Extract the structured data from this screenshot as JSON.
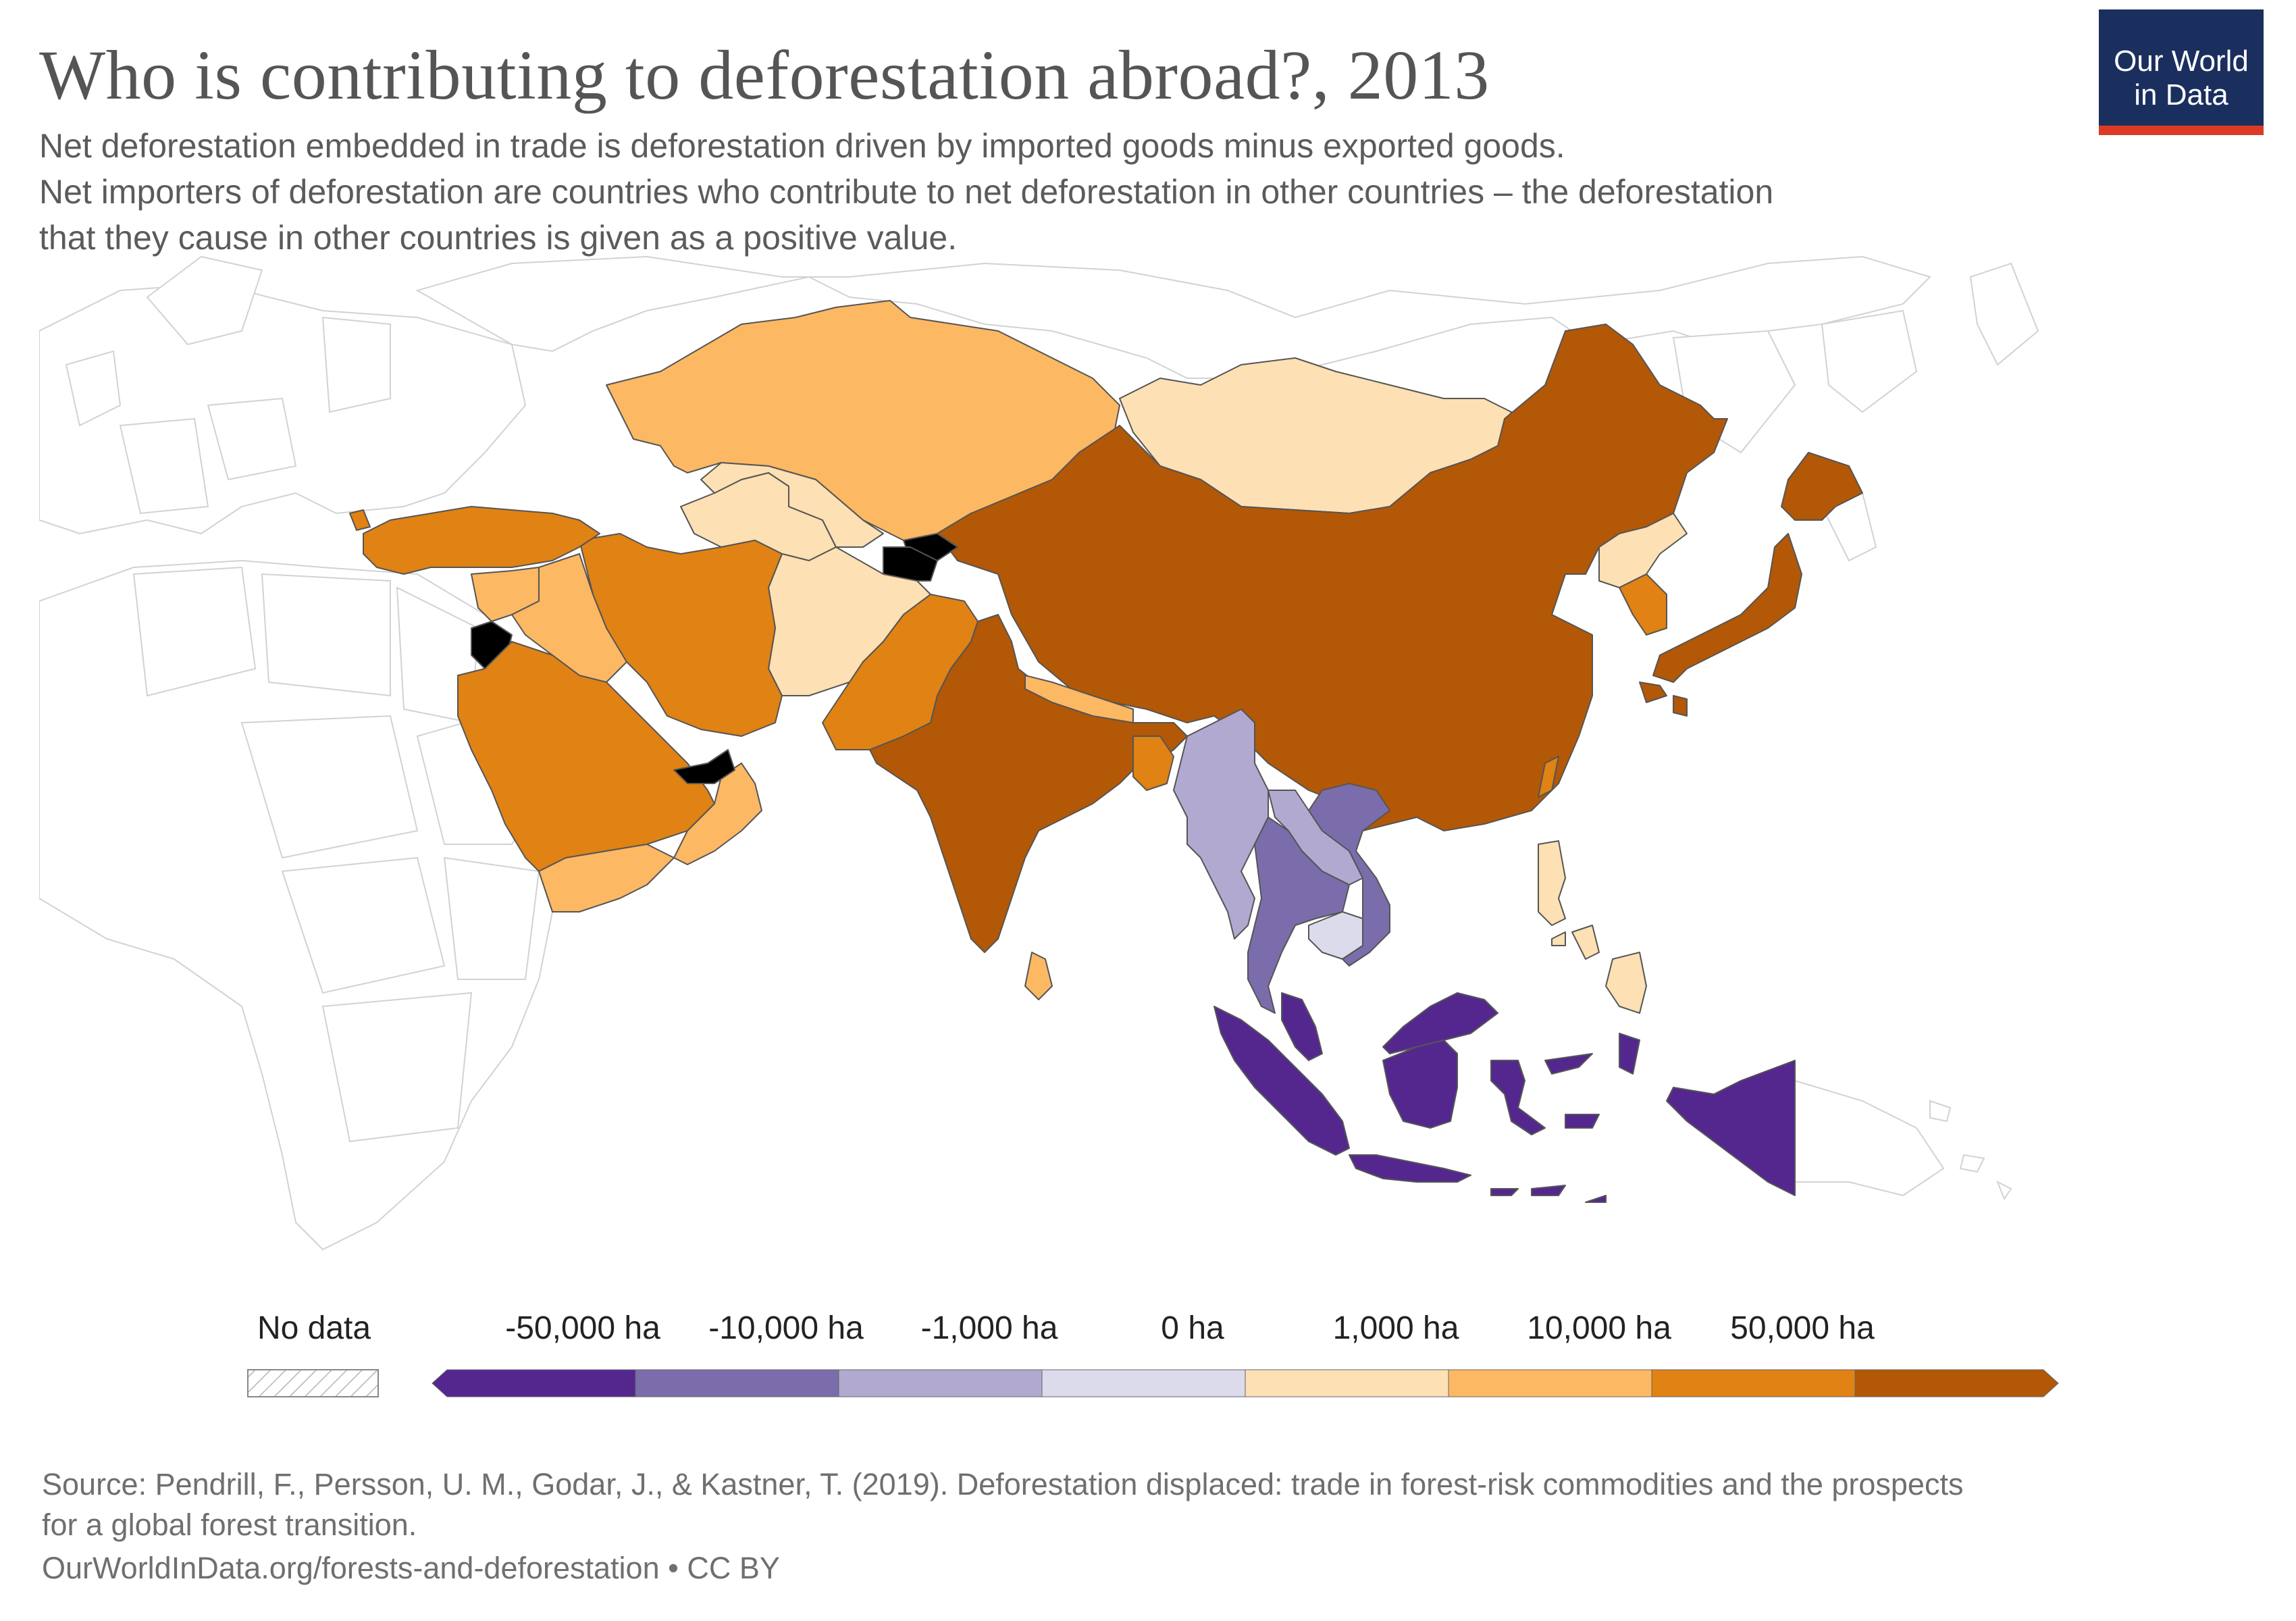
{
  "header": {
    "title": "Who is contributing to deforestation abroad?, 2013",
    "subtitle_lines": [
      "Net deforestation embedded in trade is deforestation driven by imported goods minus exported goods.",
      "Net importers of deforestation are countries who contribute to net deforestation in other countries – the deforestation",
      "that they cause in other countries is given as a positive value."
    ]
  },
  "logo": {
    "line1": "Our World",
    "line2": "in Data",
    "bg_color": "#1b2f5e",
    "bar_color": "#dc3a24"
  },
  "legend": {
    "no_data_label": "No data",
    "labels": [
      "-50,000 ha",
      "-10,000 ha",
      "-1,000 ha",
      "0 ha",
      "1,000 ha",
      "10,000 ha",
      "50,000 ha"
    ],
    "bins": [
      {
        "color": "#54278f"
      },
      {
        "color": "#7b6dab"
      },
      {
        "color": "#b2a9d1"
      },
      {
        "color": "#dcdbec"
      },
      {
        "color": "#fde0b3"
      },
      {
        "color": "#fdb863"
      },
      {
        "color": "#e08214"
      },
      {
        "color": "#b35806"
      }
    ]
  },
  "map": {
    "region": "Asia",
    "countries": [
      {
        "name": "Kazakhstan",
        "bin": 5
      },
      {
        "name": "Mongolia",
        "bin": 4
      },
      {
        "name": "China",
        "bin": 7
      },
      {
        "name": "India",
        "bin": 7
      },
      {
        "name": "Japan",
        "bin": 7
      },
      {
        "name": "South Korea",
        "bin": 6
      },
      {
        "name": "North Korea",
        "bin": 4
      },
      {
        "name": "Turkey",
        "bin": 6
      },
      {
        "name": "Iran",
        "bin": 6
      },
      {
        "name": "Saudi Arabia",
        "bin": 6
      },
      {
        "name": "Pakistan",
        "bin": 6
      },
      {
        "name": "Afghanistan",
        "bin": 4
      },
      {
        "name": "Uzbekistan",
        "bin": 4
      },
      {
        "name": "Turkmenistan",
        "bin": 4
      },
      {
        "name": "Iraq",
        "bin": 5
      },
      {
        "name": "Syria",
        "bin": 5
      },
      {
        "name": "Yemen",
        "bin": 5
      },
      {
        "name": "Oman",
        "bin": 5
      },
      {
        "name": "Nepal",
        "bin": 5
      },
      {
        "name": "Bangladesh",
        "bin": 6
      },
      {
        "name": "Sri Lanka",
        "bin": 5
      },
      {
        "name": "Myanmar",
        "bin": 2
      },
      {
        "name": "Thailand",
        "bin": 1
      },
      {
        "name": "Laos",
        "bin": 2
      },
      {
        "name": "Vietnam",
        "bin": 1
      },
      {
        "name": "Cambodia",
        "bin": 3
      },
      {
        "name": "Malaysia",
        "bin": 0
      },
      {
        "name": "Indonesia",
        "bin": 0
      },
      {
        "name": "Philippines",
        "bin": 4
      },
      {
        "name": "Taiwan",
        "bin": 6
      }
    ]
  },
  "footer": {
    "source_lines": [
      "Source: Pendrill, F., Persson, U. M., Godar, J., & Kastner, T. (2019). Deforestation displaced: trade in forest-risk commodities and the prospects",
      "for a global forest transition."
    ],
    "url": "OurWorldInData.org/forests-and-deforestation • CC BY"
  }
}
